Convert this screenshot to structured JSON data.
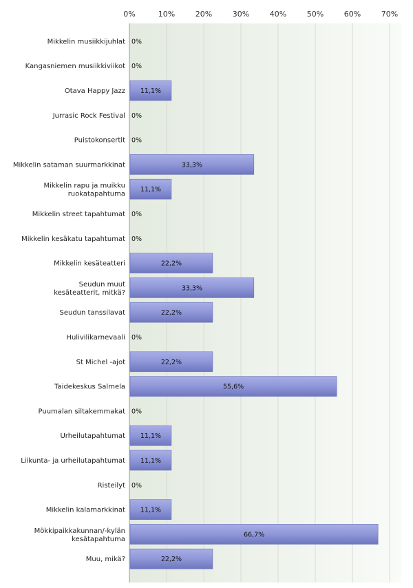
{
  "chart_data": {
    "type": "bar",
    "orientation": "horizontal",
    "x_ticks": [
      "0%",
      "10%",
      "20%",
      "30%",
      "40%",
      "50%",
      "60%",
      "70%"
    ],
    "xlim": [
      0,
      70
    ],
    "grid": true,
    "bar_color": "#8f97d8",
    "plot_background": "#eef3ea",
    "categories": [
      "Mikkelin musiikkijuhlat",
      "Kangasniemen musiikkiviikot",
      "Otava Happy Jazz",
      "Jurrasic Rock Festival",
      "Puistokonsertit",
      "Mikkelin sataman suurmarkkinat",
      "Mikkelin rapu ja muikku ruokatapahtuma",
      "Mikkelin street tapahtumat",
      "Mikkelin kesäkatu tapahtumat",
      "Mikkelin kesäteatteri",
      "Seudun muut kesäteatterit, mitkä?",
      "Seudun tanssilavat",
      "Hulivilikarnevaali",
      "St Michel -ajot",
      "Taidekeskus Salmela",
      "Puumalan siltakemmakat",
      "Urheilutapahtumat",
      "Liikunta- ja urheilutapahtumat",
      "Risteilyt",
      "Mikkelin kalamarkkinat",
      "Mökkipaikkakunnan/-kylän kesätapahtuma",
      "Muu, mikä?"
    ],
    "values": [
      0,
      0,
      11.1,
      0,
      0,
      33.3,
      11.1,
      0,
      0,
      22.2,
      33.3,
      22.2,
      0,
      22.2,
      55.6,
      0,
      11.1,
      11.1,
      0,
      11.1,
      66.7,
      22.2
    ],
    "value_labels": [
      "0%",
      "0%",
      "11,1%",
      "0%",
      "0%",
      "33,3%",
      "11,1%",
      "0%",
      "0%",
      "22,2%",
      "33,3%",
      "22,2%",
      "0%",
      "22,2%",
      "55,6%",
      "0%",
      "11,1%",
      "11,1%",
      "0%",
      "11,1%",
      "66,7%",
      "22,2%"
    ]
  }
}
